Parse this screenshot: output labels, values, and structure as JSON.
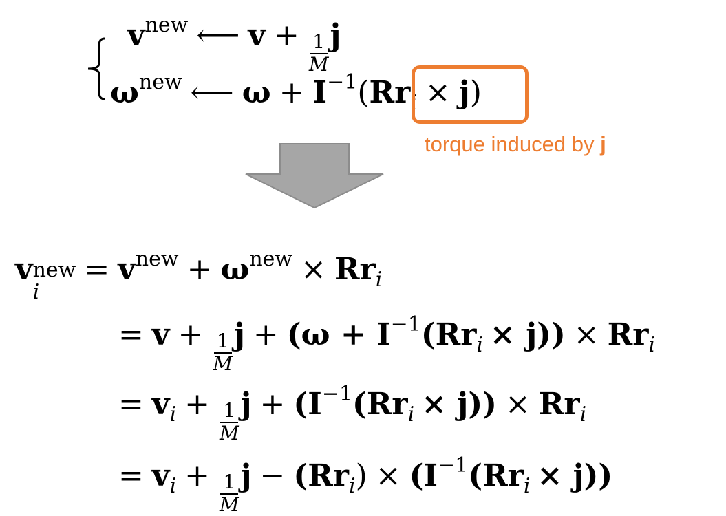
{
  "top_equations": {
    "line1": {
      "lhs": "v",
      "lhs_sup": "new",
      "arrow": "⟵",
      "rhs_v": "v",
      "plus": "+",
      "frac_num": "1",
      "frac_den": "M",
      "rhs_j": "j"
    },
    "line2": {
      "lhs": "ω",
      "lhs_sup": "new",
      "arrow": "⟵",
      "rhs_omega": "ω",
      "plus": "+",
      "inertia": "I",
      "inertia_sup": "−1",
      "open_paren": "(",
      "R": "R",
      "r": "r",
      "r_sub": "i",
      "times": "×",
      "j": "j",
      "close_paren": ")"
    }
  },
  "annotation": {
    "text": "torque induced by ",
    "bold": "j",
    "color": "#ED7D31"
  },
  "arrow_color": "#A6A6A6",
  "bottom_equations": {
    "row1": {
      "lhs": "v",
      "lhs_sub": "i",
      "lhs_sup": "new",
      "eq": "=",
      "t1": "v",
      "t1_sup": "new",
      "plus": "+",
      "t2": "ω",
      "t2_sup": "new",
      "times": "×",
      "t3": "Rr",
      "t3_sub": "i"
    },
    "row2": {
      "eq": "=",
      "v": "v",
      "plus1": "+",
      "frac_num": "1",
      "frac_den": "M",
      "j": "j",
      "plus2": "+",
      "group": "(ω + I",
      "group_sup": "−1",
      "inner": "(Rr",
      "inner_sub": "i",
      "inner_rest": "× j))",
      "times": "×",
      "tail": "Rr",
      "tail_sub": "i"
    },
    "row3": {
      "eq": "=",
      "v": "v",
      "v_sub": "i",
      "plus1": "+",
      "frac_num": "1",
      "frac_den": "M",
      "j": "j",
      "plus2": "+",
      "group": "(I",
      "group_sup": "−1",
      "inner": "(Rr",
      "inner_sub": "i",
      "inner_rest": "× j))",
      "times": "×",
      "tail": "Rr",
      "tail_sub": "i"
    },
    "row4": {
      "eq": "=",
      "v": "v",
      "v_sub": "i",
      "plus1": "+",
      "frac_num": "1",
      "frac_den": "M",
      "j": "j",
      "minus": "−",
      "group": "(Rr",
      "group_sub": "i",
      "group_close": ")",
      "times": "×",
      "tail": "(I",
      "tail_sup": "−1",
      "tail_inner": "(Rr",
      "tail_inner_sub": "i",
      "tail_rest": "× j))"
    }
  }
}
